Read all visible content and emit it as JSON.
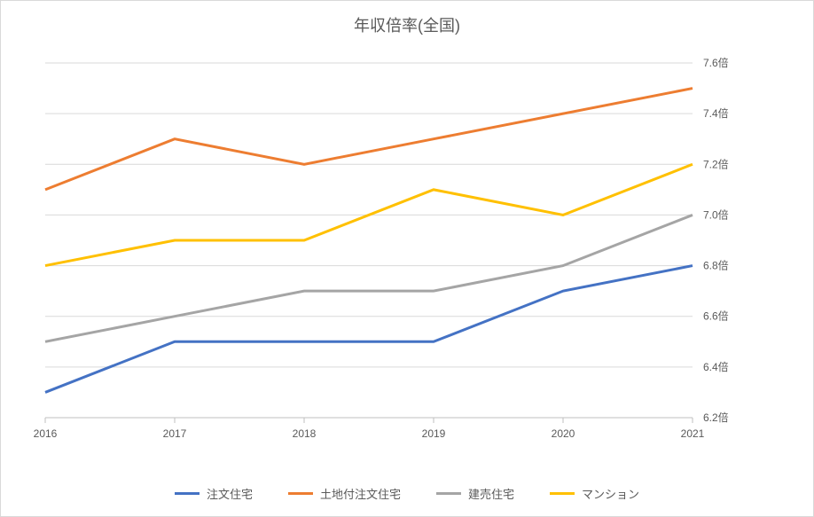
{
  "chart": {
    "type": "line",
    "title": "年収倍率(全国)",
    "title_fontsize": 18,
    "title_color": "#595959",
    "background_color": "#ffffff",
    "border_color": "#d9d9d9",
    "grid_color": "#d9d9d9",
    "axis_color": "#bfbfbf",
    "text_color": "#595959",
    "tick_fontsize": 12,
    "legend_fontsize": 13,
    "line_width": 3,
    "y_axis": {
      "position": "right",
      "min": 6.2,
      "max": 7.6,
      "tick_step": 0.2,
      "tick_labels": [
        "6.2倍",
        "6.4倍",
        "6.6倍",
        "6.8倍",
        "7.0倍",
        "7.2倍",
        "7.4倍",
        "7.6倍"
      ],
      "tick_suffix": "倍"
    },
    "x_axis": {
      "categories": [
        "2016",
        "2017",
        "2018",
        "2019",
        "2020",
        "2021"
      ]
    },
    "series": [
      {
        "name": "注文住宅",
        "color": "#4472c4",
        "values": [
          6.3,
          6.5,
          6.5,
          6.5,
          6.7,
          6.8
        ]
      },
      {
        "name": "土地付注文住宅",
        "color": "#ed7d31",
        "values": [
          7.1,
          7.3,
          7.2,
          7.3,
          7.4,
          7.5
        ]
      },
      {
        "name": "建売住宅",
        "color": "#a5a5a5",
        "values": [
          6.5,
          6.6,
          6.7,
          6.7,
          6.8,
          7.0
        ]
      },
      {
        "name": "マンション",
        "color": "#ffc000",
        "values": [
          6.8,
          6.9,
          6.9,
          7.1,
          7.0,
          7.2
        ]
      }
    ]
  }
}
